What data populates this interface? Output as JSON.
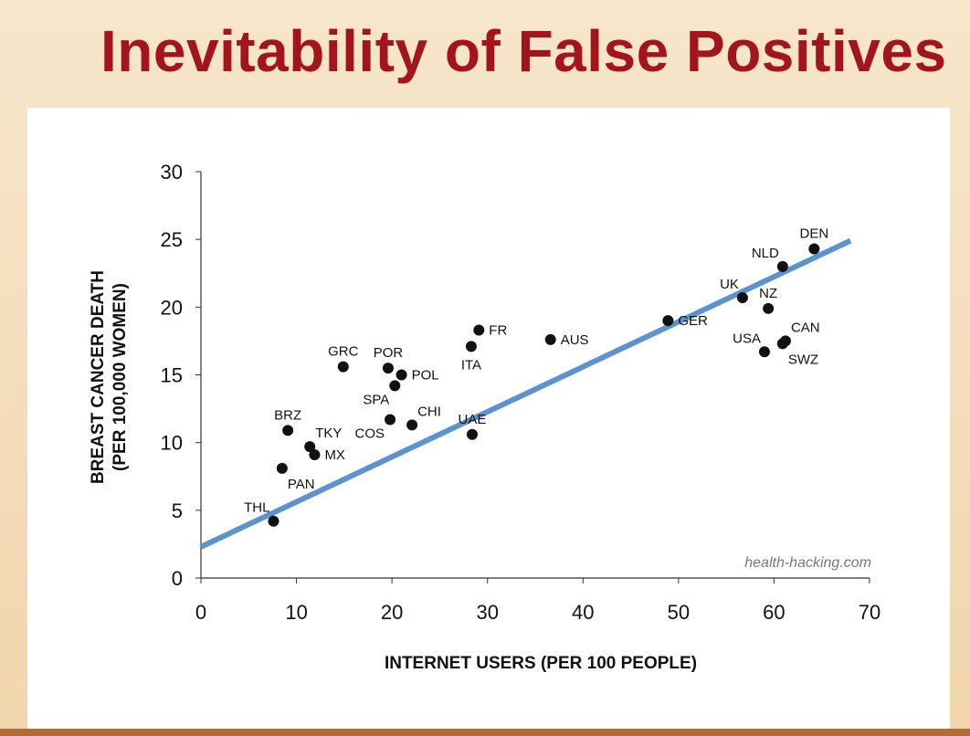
{
  "slide": {
    "title": "Inevitability of False Positives"
  },
  "colors": {
    "title": "#a3151b",
    "background": "#f4dcb8",
    "trendline": "#5b93cf",
    "points": "#111111"
  },
  "chart_data": {
    "type": "scatter",
    "title": "",
    "xlabel": "INTERNET USERS (PER 100 PEOPLE)",
    "ylabel_line1": "BREAST CANCER DEATH",
    "ylabel_line2": "(PER 100,000 WOMEN)",
    "xlim": [
      0,
      70
    ],
    "ylim": [
      0,
      30
    ],
    "xticks": [
      0,
      10,
      20,
      30,
      40,
      50,
      60,
      70
    ],
    "yticks": [
      0,
      5,
      10,
      15,
      20,
      25,
      30
    ],
    "grid": false,
    "credit": "health-hacking.com",
    "trendline": {
      "x": [
        0,
        68
      ],
      "y": [
        2.3,
        24.9
      ]
    },
    "points": [
      {
        "label": "DEN",
        "x": 64.2,
        "y": 24.3,
        "label_pos": "above"
      },
      {
        "label": "NLD",
        "x": 60.9,
        "y": 23.0,
        "label_pos": "above-left"
      },
      {
        "label": "UK",
        "x": 56.7,
        "y": 20.7,
        "label_pos": "above-left"
      },
      {
        "label": "NZ",
        "x": 59.4,
        "y": 19.9,
        "label_pos": "above"
      },
      {
        "label": "CAN",
        "x": 61.2,
        "y": 17.5,
        "label_pos": "above-right"
      },
      {
        "label": "USA",
        "x": 59.0,
        "y": 16.7,
        "label_pos": "above-left"
      },
      {
        "label": "SWZ",
        "x": 60.9,
        "y": 17.3,
        "label_pos": "below-right"
      },
      {
        "label": "GER",
        "x": 48.9,
        "y": 19.0,
        "label_pos": "right"
      },
      {
        "label": "AUS",
        "x": 36.6,
        "y": 17.6,
        "label_pos": "right"
      },
      {
        "label": "FR",
        "x": 29.1,
        "y": 18.3,
        "label_pos": "right"
      },
      {
        "label": "ITA",
        "x": 28.3,
        "y": 17.1,
        "label_pos": "below"
      },
      {
        "label": "UAE",
        "x": 28.4,
        "y": 10.6,
        "label_pos": "above"
      },
      {
        "label": "GRC",
        "x": 14.9,
        "y": 15.6,
        "label_pos": "above"
      },
      {
        "label": "POR",
        "x": 19.6,
        "y": 15.5,
        "label_pos": "above"
      },
      {
        "label": "POL",
        "x": 21.0,
        "y": 15.0,
        "label_pos": "right"
      },
      {
        "label": "SPA",
        "x": 20.3,
        "y": 14.2,
        "label_pos": "below-left"
      },
      {
        "label": "CHI",
        "x": 22.1,
        "y": 11.3,
        "label_pos": "above-right"
      },
      {
        "label": "COS",
        "x": 19.8,
        "y": 11.7,
        "label_pos": "below-left"
      },
      {
        "label": "BRZ",
        "x": 9.1,
        "y": 10.9,
        "label_pos": "above"
      },
      {
        "label": "TKY",
        "x": 11.4,
        "y": 9.7,
        "label_pos": "above-right"
      },
      {
        "label": "MX",
        "x": 11.9,
        "y": 9.1,
        "label_pos": "right"
      },
      {
        "label": "PAN",
        "x": 8.5,
        "y": 8.1,
        "label_pos": "below-right"
      },
      {
        "label": "THL",
        "x": 7.6,
        "y": 4.2,
        "label_pos": "above-left"
      }
    ]
  }
}
